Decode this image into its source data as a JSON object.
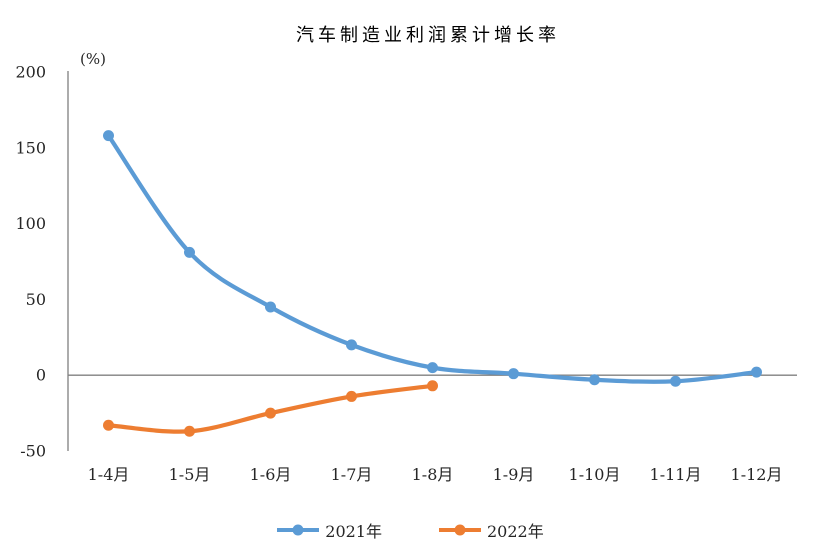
{
  "chart_data": {
    "type": "line",
    "title": "汽车制造业利润累计增长率",
    "ylabel": "(%)",
    "xlabel": "",
    "categories": [
      "1-4月",
      "1-5月",
      "1-6月",
      "1-7月",
      "1-8月",
      "1-9月",
      "1-10月",
      "1-11月",
      "1-12月"
    ],
    "series": [
      {
        "name": "2021年",
        "color": "#5B9BD5",
        "values": [
          158,
          81,
          45,
          20,
          5,
          1,
          -3,
          -4,
          2
        ]
      },
      {
        "name": "2022年",
        "color": "#ED7D31",
        "values": [
          -33,
          -37,
          -25,
          -14,
          -7
        ]
      }
    ],
    "y_ticks": [
      200,
      150,
      100,
      50,
      0,
      -50
    ],
    "ylim": [
      -50,
      200
    ],
    "grid": false,
    "legend_position": "bottom",
    "axis_color": "#808080",
    "text_color": "#262626",
    "background_color": "#ffffff"
  }
}
